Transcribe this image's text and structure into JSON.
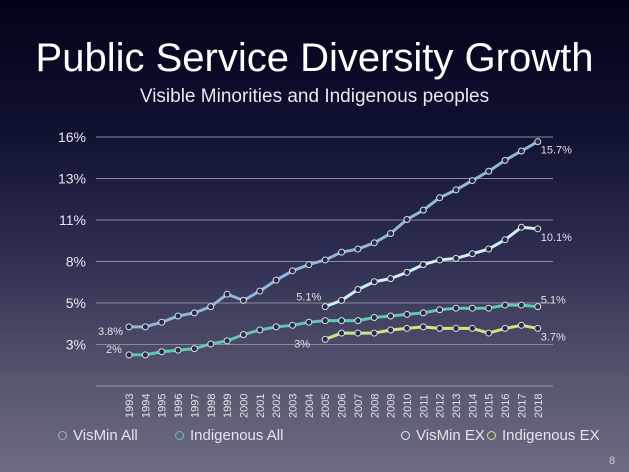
{
  "slide": {
    "title": "Public Service Diversity Growth",
    "subtitle": "Visible Minorities and Indigenous peoples",
    "page_number": "8"
  },
  "chart_data": {
    "type": "line",
    "title": "Public Service Diversity Growth",
    "subtitle": "Visible Minorities and Indigenous peoples",
    "xlabel": "",
    "ylabel": "",
    "ylim": [
      0,
      16
    ],
    "grid": true,
    "legend_position": "bottom",
    "yticks": [
      {
        "value": 2.667,
        "label": "3%"
      },
      {
        "value": 5.333,
        "label": "5%"
      },
      {
        "value": 8,
        "label": "8%"
      },
      {
        "value": 10.667,
        "label": "11%"
      },
      {
        "value": 13.333,
        "label": "13%"
      },
      {
        "value": 16,
        "label": "16%"
      }
    ],
    "x": [
      "1993",
      "1994",
      "1995",
      "1996",
      "1997",
      "1998",
      "1999",
      "2000",
      "2001",
      "2002",
      "2003",
      "2004",
      "2005",
      "2006",
      "2007",
      "2008",
      "2009",
      "2010",
      "2011",
      "2012",
      "2013",
      "2014",
      "2015",
      "2016",
      "2017",
      "2018"
    ],
    "series": [
      {
        "name": "VisMin All",
        "color": "#8fb6dc",
        "values": [
          3.8,
          3.8,
          4.1,
          4.5,
          4.7,
          5.1,
          5.9,
          5.5,
          6.1,
          6.8,
          7.4,
          7.8,
          8.1,
          8.6,
          8.8,
          9.2,
          9.8,
          10.7,
          11.3,
          12.1,
          12.6,
          13.2,
          13.8,
          14.5,
          15.1,
          15.7
        ]
      },
      {
        "name": "Indigenous All",
        "color": "#5ec8b2",
        "values": [
          2.0,
          2.0,
          2.2,
          2.3,
          2.4,
          2.7,
          2.9,
          3.3,
          3.6,
          3.8,
          3.9,
          4.1,
          4.2,
          4.2,
          4.2,
          4.4,
          4.5,
          4.6,
          4.7,
          4.9,
          5.0,
          5.0,
          5.0,
          5.2,
          5.2,
          5.1
        ]
      },
      {
        "name": "VisMin EX",
        "color": "#cdf2f2",
        "values": [
          null,
          null,
          null,
          null,
          null,
          null,
          null,
          null,
          null,
          null,
          null,
          null,
          5.1,
          5.5,
          6.2,
          6.7,
          6.9,
          7.3,
          7.8,
          8.1,
          8.2,
          8.5,
          8.8,
          9.4,
          10.2,
          10.1
        ]
      },
      {
        "name": "Indigenous EX",
        "color": "#c9ea78",
        "values": [
          null,
          null,
          null,
          null,
          null,
          null,
          null,
          null,
          null,
          null,
          null,
          null,
          3.0,
          3.4,
          3.4,
          3.4,
          3.6,
          3.7,
          3.8,
          3.7,
          3.7,
          3.7,
          3.4,
          3.7,
          3.9,
          3.7
        ]
      }
    ],
    "annotations": [
      {
        "series": 0,
        "year": "1993",
        "text": "3.8%",
        "pos": "left-below"
      },
      {
        "series": 1,
        "year": "1993",
        "text": "2%",
        "pos": "left-above"
      },
      {
        "series": 2,
        "year": "2005",
        "text": "5.1%",
        "pos": "above-left"
      },
      {
        "series": 3,
        "year": "2005",
        "text": "3%",
        "pos": "left-below"
      },
      {
        "series": 0,
        "year": "2018",
        "text": "15.7%",
        "pos": "right-below"
      },
      {
        "series": 2,
        "year": "2018",
        "text": "10.1%",
        "pos": "right-below"
      },
      {
        "series": 1,
        "year": "2018",
        "text": "5.1%",
        "pos": "right-above"
      },
      {
        "series": 3,
        "year": "2018",
        "text": "3.7%",
        "pos": "right-below"
      }
    ]
  }
}
